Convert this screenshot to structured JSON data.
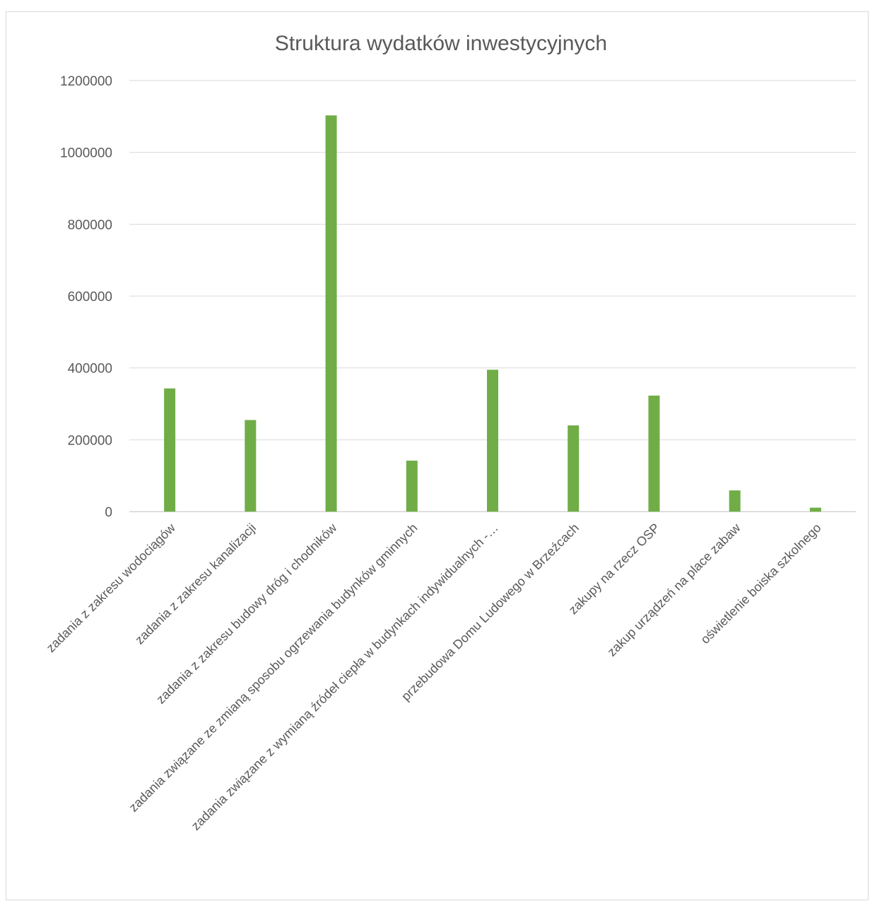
{
  "chart_data": {
    "type": "bar",
    "title": "Struktura wydatków inwestycyjnych",
    "xlabel": "",
    "ylabel": "",
    "ylim": [
      0,
      1200000
    ],
    "yticks": [
      0,
      200000,
      400000,
      600000,
      800000,
      1000000,
      1200000
    ],
    "ytick_labels": [
      "0",
      "200000",
      "400000",
      "600000",
      "800000",
      "1000000",
      "1200000"
    ],
    "grid": true,
    "legend": "none",
    "bar_color": "#70ad47",
    "categories": [
      "zadania z zakresu wodociągów",
      "zadania z zakresu kanalizacji",
      "zadania z zakresu budowy dróg i chodników",
      "zadania związane ze zmianą sposobu ogrzewania budynków gminnych",
      "zadania związane z wymianą źródeł ciepła w budynkach indywidualnych -…",
      "przebudowa Domu Ludowego w Brzeźcach",
      "zakupy na rzecz OSP",
      "zakup urządzeń na place zabaw",
      "oświetlenie boiska szkolnego"
    ],
    "values": [
      343000,
      255000,
      1103000,
      142000,
      395000,
      240000,
      323000,
      59000,
      11000
    ]
  }
}
